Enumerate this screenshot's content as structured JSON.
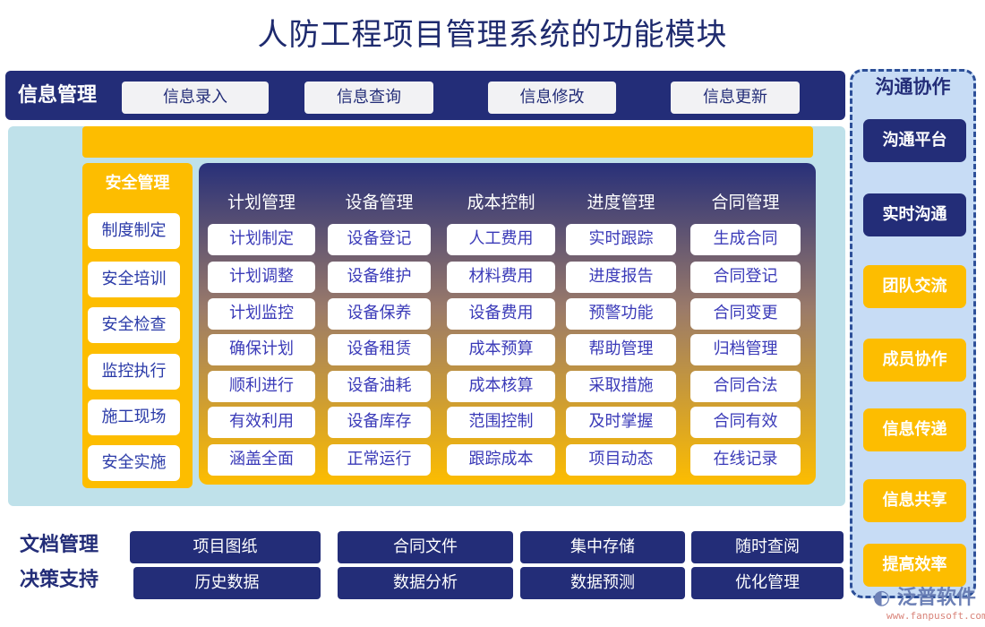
{
  "title": "人防工程项目管理系统的功能模块",
  "colors": {
    "navy": "#232d78",
    "yellow": "#fdbd00",
    "teal": "#bfe1ea",
    "light_blue": "#c7dcf5"
  },
  "info": {
    "label": "信息管理",
    "buttons": [
      "信息录入",
      "信息查询",
      "信息修改",
      "信息更新"
    ]
  },
  "safety": {
    "title": "安全管理",
    "items": [
      "制度制定",
      "安全培训",
      "安全检查",
      "监控执行",
      "施工现场",
      "安全实施"
    ]
  },
  "modules": [
    {
      "title": "计划管理",
      "items": [
        "计划制定",
        "计划调整",
        "计划监控",
        "确保计划",
        "顺利进行",
        "有效利用",
        "涵盖全面"
      ]
    },
    {
      "title": "设备管理",
      "items": [
        "设备登记",
        "设备维护",
        "设备保养",
        "设备租赁",
        "设备油耗",
        "设备库存",
        "正常运行"
      ]
    },
    {
      "title": "成本控制",
      "items": [
        "人工费用",
        "材料费用",
        "设备费用",
        "成本预算",
        "成本核算",
        "范围控制",
        "跟踪成本"
      ]
    },
    {
      "title": "进度管理",
      "items": [
        "实时跟踪",
        "进度报告",
        "预警功能",
        "帮助管理",
        "采取措施",
        "及时掌握",
        "项目动态"
      ]
    },
    {
      "title": "合同管理",
      "items": [
        "生成合同",
        "合同登记",
        "合同变更",
        "归档管理",
        "合同合法",
        "合同有效",
        "在线记录"
      ]
    }
  ],
  "communication": {
    "title": "沟通协作",
    "items": [
      "沟通平台",
      "实时沟通",
      "团队交流",
      "成员协作",
      "信息传递",
      "信息共享",
      "提高效率"
    ]
  },
  "documents": {
    "label": "文档管理",
    "items": [
      "项目图纸",
      "合同文件",
      "集中存储",
      "随时查阅"
    ]
  },
  "decision": {
    "label": "决策支持",
    "items": [
      "历史数据",
      "数据分析",
      "数据预测",
      "优化管理"
    ]
  },
  "logo": {
    "name": "泛普软件",
    "url": "www.fanpusoft.com"
  }
}
